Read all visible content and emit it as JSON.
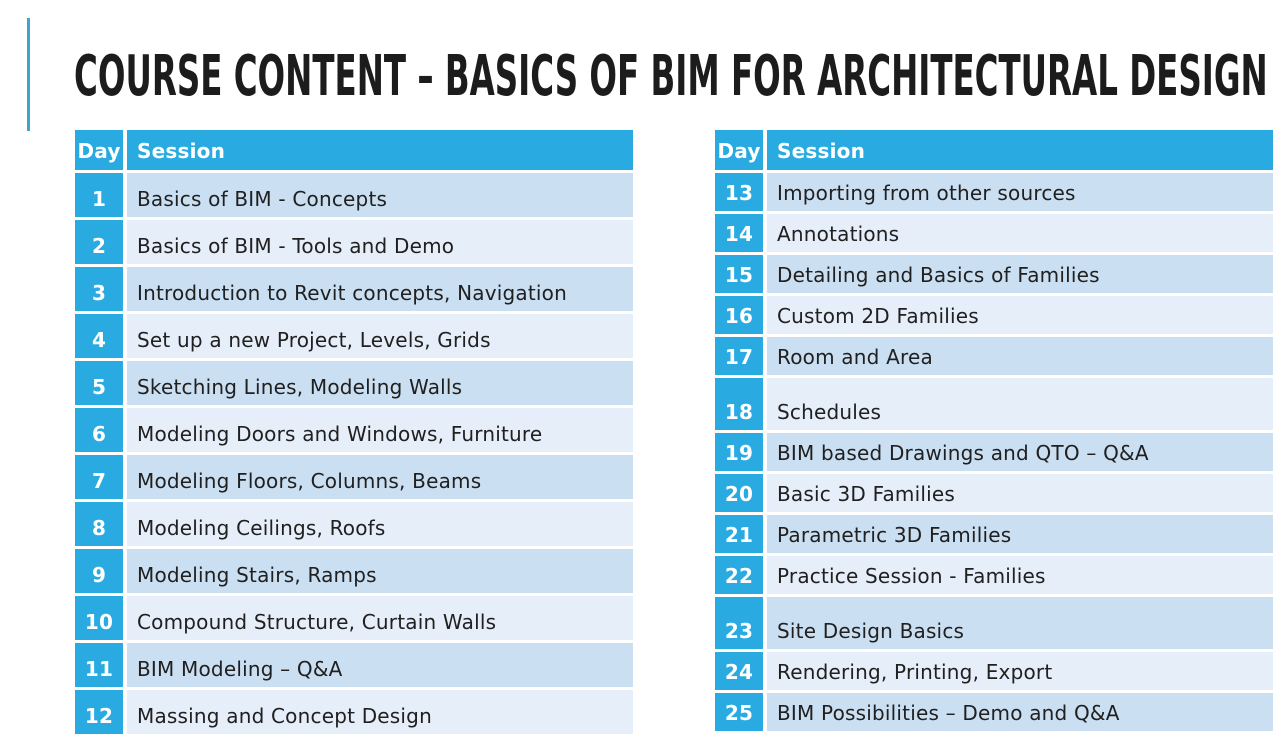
{
  "title": "COURSE CONTENT – BASICS OF BIM FOR ARCHITECTURAL DESIGN",
  "colors": {
    "page_bg": "#ffffff",
    "accent_bar": "#3ea6cb",
    "header_blue": "#29abe2",
    "row_dark": "#cbdff2",
    "row_light": "#e6eef9",
    "title_color": "#1c1c1c",
    "text_color": "#202020"
  },
  "tables": [
    {
      "columns": {
        "day": "Day",
        "session": "Session"
      },
      "rows": [
        {
          "day": "1",
          "session": "Basics of BIM - Concepts"
        },
        {
          "day": "2",
          "session": "Basics of BIM - Tools and Demo"
        },
        {
          "day": "3",
          "session": "Introduction to Revit concepts, Navigation"
        },
        {
          "day": "4",
          "session": "Set up a new Project, Levels, Grids"
        },
        {
          "day": "5",
          "session": "Sketching Lines, Modeling Walls"
        },
        {
          "day": "6",
          "session": "Modeling Doors and Windows, Furniture"
        },
        {
          "day": "7",
          "session": "Modeling Floors, Columns, Beams"
        },
        {
          "day": "8",
          "session": "Modeling Ceilings, Roofs"
        },
        {
          "day": "9",
          "session": "Modeling Stairs, Ramps"
        },
        {
          "day": "10",
          "session": "Compound Structure, Curtain Walls"
        },
        {
          "day": "11",
          "session": "BIM Modeling – Q&A"
        },
        {
          "day": "12",
          "session": "Massing and Concept Design"
        }
      ]
    },
    {
      "columns": {
        "day": "Day",
        "session": "Session"
      },
      "rows": [
        {
          "day": "13",
          "session": "Importing from other sources"
        },
        {
          "day": "14",
          "session": "Annotations"
        },
        {
          "day": "15",
          "session": "Detailing and Basics of Families"
        },
        {
          "day": "16",
          "session": "Custom 2D Families"
        },
        {
          "day": "17",
          "session": "Room and Area"
        },
        {
          "day": "18",
          "session": "Schedules",
          "tall": true
        },
        {
          "day": "19",
          "session": "BIM based Drawings and QTO – Q&A"
        },
        {
          "day": "20",
          "session": "Basic 3D Families"
        },
        {
          "day": "21",
          "session": "Parametric 3D Families"
        },
        {
          "day": "22",
          "session": "Practice Session - Families"
        },
        {
          "day": "23",
          "session": "Site Design Basics",
          "tall": true
        },
        {
          "day": "24",
          "session": "Rendering, Printing, Export"
        },
        {
          "day": "25",
          "session": "BIM Possibilities – Demo and Q&A"
        }
      ]
    }
  ]
}
